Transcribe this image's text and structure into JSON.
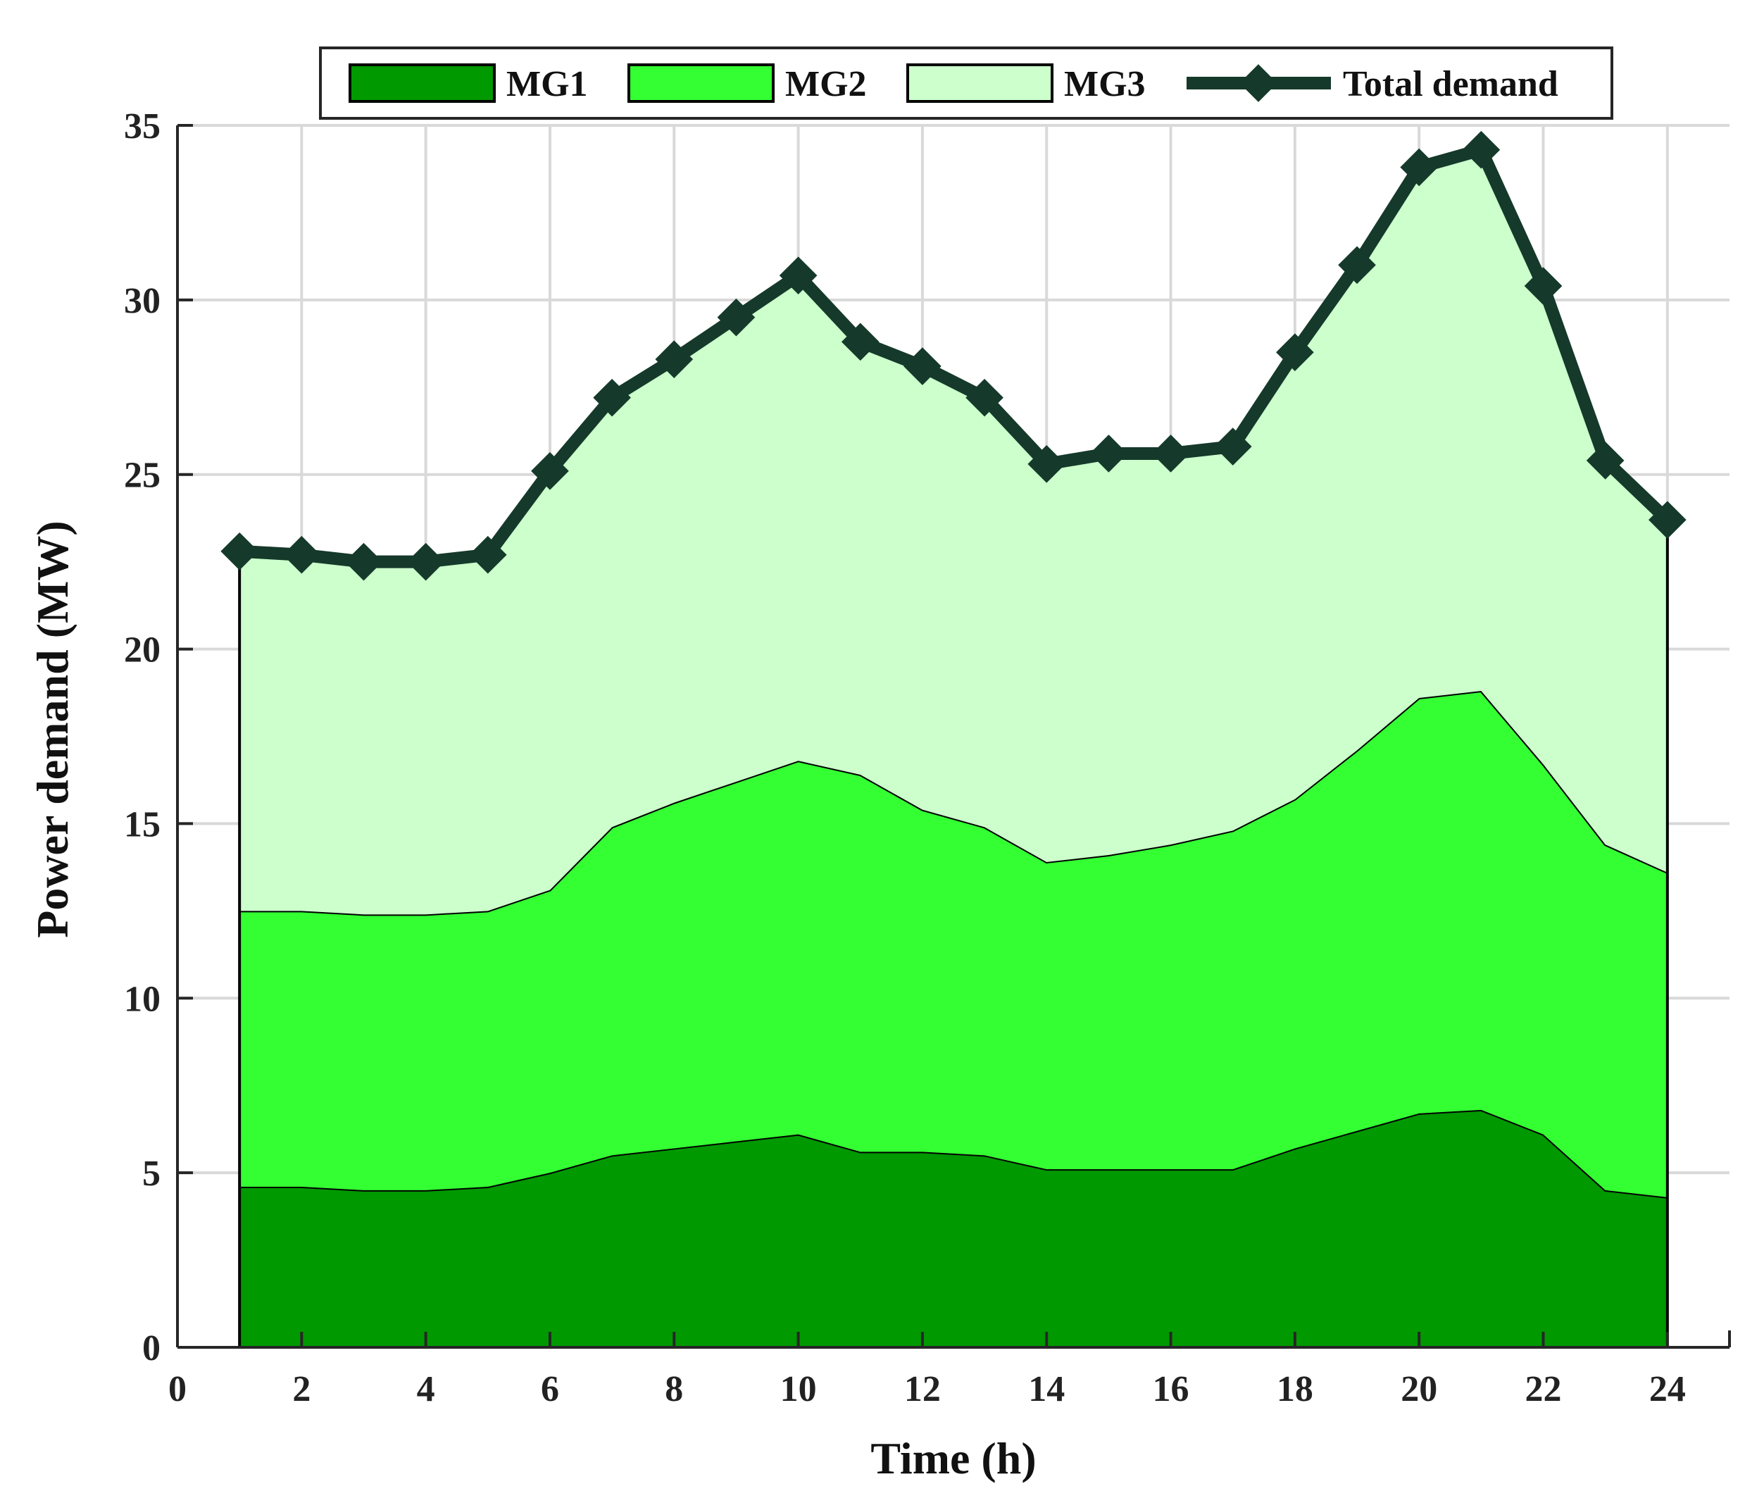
{
  "chart_data": {
    "type": "area",
    "stacked": true,
    "xlabel": "Time (h)",
    "ylabel": "Power demand (MW)",
    "xlim": [
      0,
      25
    ],
    "ylim": [
      0,
      35
    ],
    "xticks": [
      0,
      2,
      4,
      6,
      8,
      10,
      12,
      14,
      16,
      18,
      20,
      22,
      24
    ],
    "yticks": [
      0,
      5,
      10,
      15,
      20,
      25,
      30,
      35
    ],
    "grid": true,
    "legend_position": "top",
    "x": [
      1,
      2,
      3,
      4,
      5,
      6,
      7,
      8,
      9,
      10,
      11,
      12,
      13,
      14,
      15,
      16,
      17,
      18,
      19,
      20,
      21,
      22,
      23,
      24
    ],
    "series": [
      {
        "name": "MG1",
        "kind": "area",
        "color": "#009900",
        "values": [
          4.6,
          4.6,
          4.5,
          4.5,
          4.6,
          5.0,
          5.5,
          5.7,
          5.9,
          6.1,
          5.6,
          5.6,
          5.5,
          5.1,
          5.1,
          5.1,
          5.1,
          5.7,
          6.2,
          6.7,
          6.8,
          6.1,
          4.5,
          4.3
        ]
      },
      {
        "name": "MG2",
        "kind": "area",
        "color": "#33ff33",
        "values": [
          7.9,
          7.9,
          7.9,
          7.9,
          7.9,
          8.1,
          9.4,
          9.9,
          10.3,
          10.7,
          10.8,
          9.8,
          9.4,
          8.8,
          9.0,
          9.3,
          9.7,
          10.0,
          10.9,
          11.9,
          12.0,
          10.6,
          9.9,
          9.3
        ]
      },
      {
        "name": "MG3",
        "kind": "area",
        "color": "#ccffcc",
        "values": [
          10.3,
          10.2,
          10.1,
          10.1,
          10.2,
          12.0,
          12.3,
          12.7,
          13.3,
          13.9,
          12.4,
          12.7,
          12.3,
          11.4,
          11.5,
          11.2,
          11.0,
          12.8,
          13.9,
          15.2,
          15.5,
          13.7,
          11.0,
          10.1
        ]
      },
      {
        "name": "Total demand",
        "kind": "line",
        "color": "#15392a",
        "values": [
          22.8,
          22.7,
          22.5,
          22.5,
          22.7,
          25.1,
          27.2,
          28.3,
          29.5,
          30.7,
          28.8,
          28.1,
          27.2,
          25.3,
          25.6,
          25.6,
          25.8,
          28.5,
          31.0,
          33.8,
          34.3,
          30.4,
          25.4,
          23.7
        ]
      }
    ]
  }
}
